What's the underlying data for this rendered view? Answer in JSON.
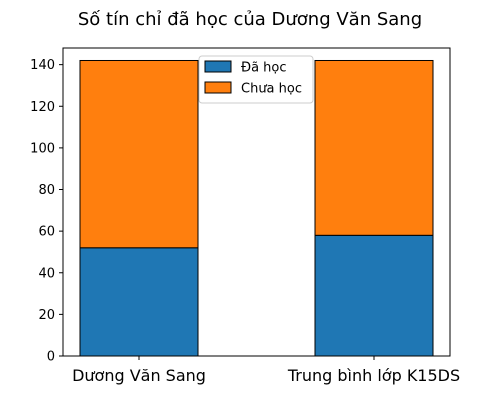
{
  "chart_data": {
    "type": "bar",
    "stacked": true,
    "title": "Số tín chỉ đã học của Dương Văn Sang",
    "categories": [
      "Dương Văn Sang",
      "Trung bình lớp K15DS"
    ],
    "series": [
      {
        "name": "Đã học",
        "values": [
          52,
          58
        ],
        "color": "#1f77b4"
      },
      {
        "name": "Chưa học",
        "values": [
          90,
          84
        ],
        "color": "#ff7f0e"
      }
    ],
    "ylim": [
      0,
      148
    ],
    "yticks": [
      0,
      20,
      40,
      60,
      80,
      100,
      120,
      140
    ],
    "legend_position": "upper-center",
    "grid": false
  }
}
